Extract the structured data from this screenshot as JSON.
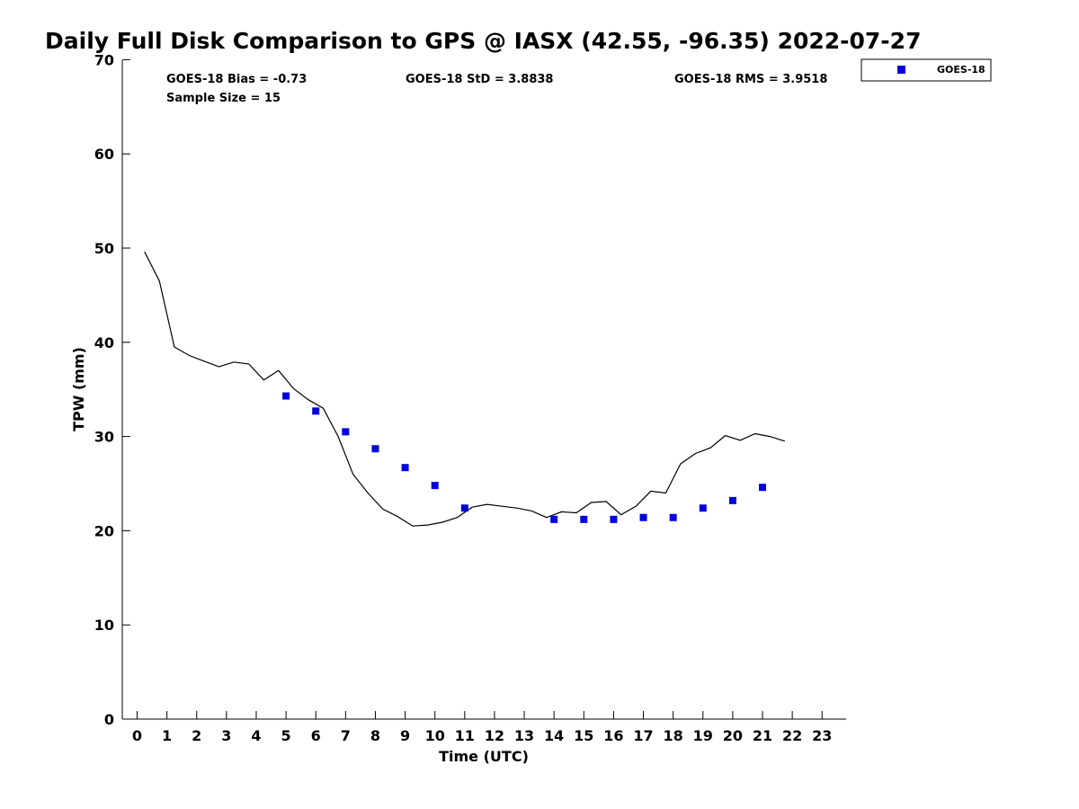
{
  "chart_data": {
    "type": "scatter",
    "title": "Daily Full Disk Comparison to GPS @ IASX (42.55, -96.35) 2022-07-27",
    "xlabel": "Time (UTC)",
    "ylabel": "TPW (mm)",
    "xlim": [
      -0.5,
      23.75
    ],
    "ylim": [
      0,
      70
    ],
    "xticks": [
      "0",
      "1",
      "2",
      "3",
      "4",
      "5",
      "6",
      "7",
      "8",
      "9",
      "10",
      "11",
      "12",
      "13",
      "14",
      "15",
      "16",
      "17",
      "18",
      "19",
      "20",
      "21",
      "22",
      "23"
    ],
    "yticks": [
      "0",
      "10",
      "20",
      "30",
      "40",
      "50",
      "60",
      "70"
    ],
    "grid": false,
    "legend_position": "top-right",
    "stats": {
      "bias": "GOES-18 Bias = -0.73",
      "std": "GOES-18 StD = 3.8838",
      "rms": "GOES-18 RMS = 3.9518",
      "sample": "Sample Size = 15"
    },
    "series": [
      {
        "name": "GOES-18",
        "kind": "marker",
        "color": "#0000dd",
        "x": [
          5,
          6,
          7,
          8,
          9,
          10,
          11,
          14,
          15,
          16,
          17,
          18,
          19,
          20,
          21
        ],
        "y": [
          34.3,
          32.7,
          30.5,
          28.7,
          26.7,
          24.8,
          22.4,
          21.2,
          21.2,
          21.2,
          21.4,
          21.4,
          22.4,
          23.2,
          24.6
        ]
      },
      {
        "kind": "line",
        "color": "#000000",
        "x": [
          0.25,
          0.75,
          1.25,
          1.75,
          2.25,
          2.75,
          3.25,
          3.75,
          4.25,
          4.75,
          5.25,
          5.75,
          6.25,
          6.75,
          7.25,
          7.75,
          8.25,
          8.75,
          9.25,
          9.75,
          10.25,
          10.75,
          11.25,
          11.75,
          12.25,
          12.75,
          13.25,
          13.75,
          14.25,
          14.75,
          15.25,
          15.75,
          16.25,
          16.75,
          17.25,
          17.75,
          18.25,
          18.75,
          19.25,
          19.75,
          20.25,
          20.75,
          21.25,
          21.75
        ],
        "y": [
          49.6,
          46.5,
          39.5,
          38.6,
          38.0,
          37.4,
          37.9,
          37.7,
          36.0,
          37.0,
          35.1,
          33.9,
          33.0,
          30.0,
          26.0,
          24.0,
          22.3,
          21.5,
          20.5,
          20.6,
          20.9,
          21.4,
          22.5,
          22.8,
          22.6,
          22.4,
          22.1,
          21.4,
          22.0,
          21.9,
          23.0,
          23.1,
          21.7,
          22.6,
          24.2,
          24.0,
          27.1,
          28.2,
          28.8,
          30.1,
          29.6,
          30.3,
          30.0,
          29.5
        ]
      }
    ]
  }
}
